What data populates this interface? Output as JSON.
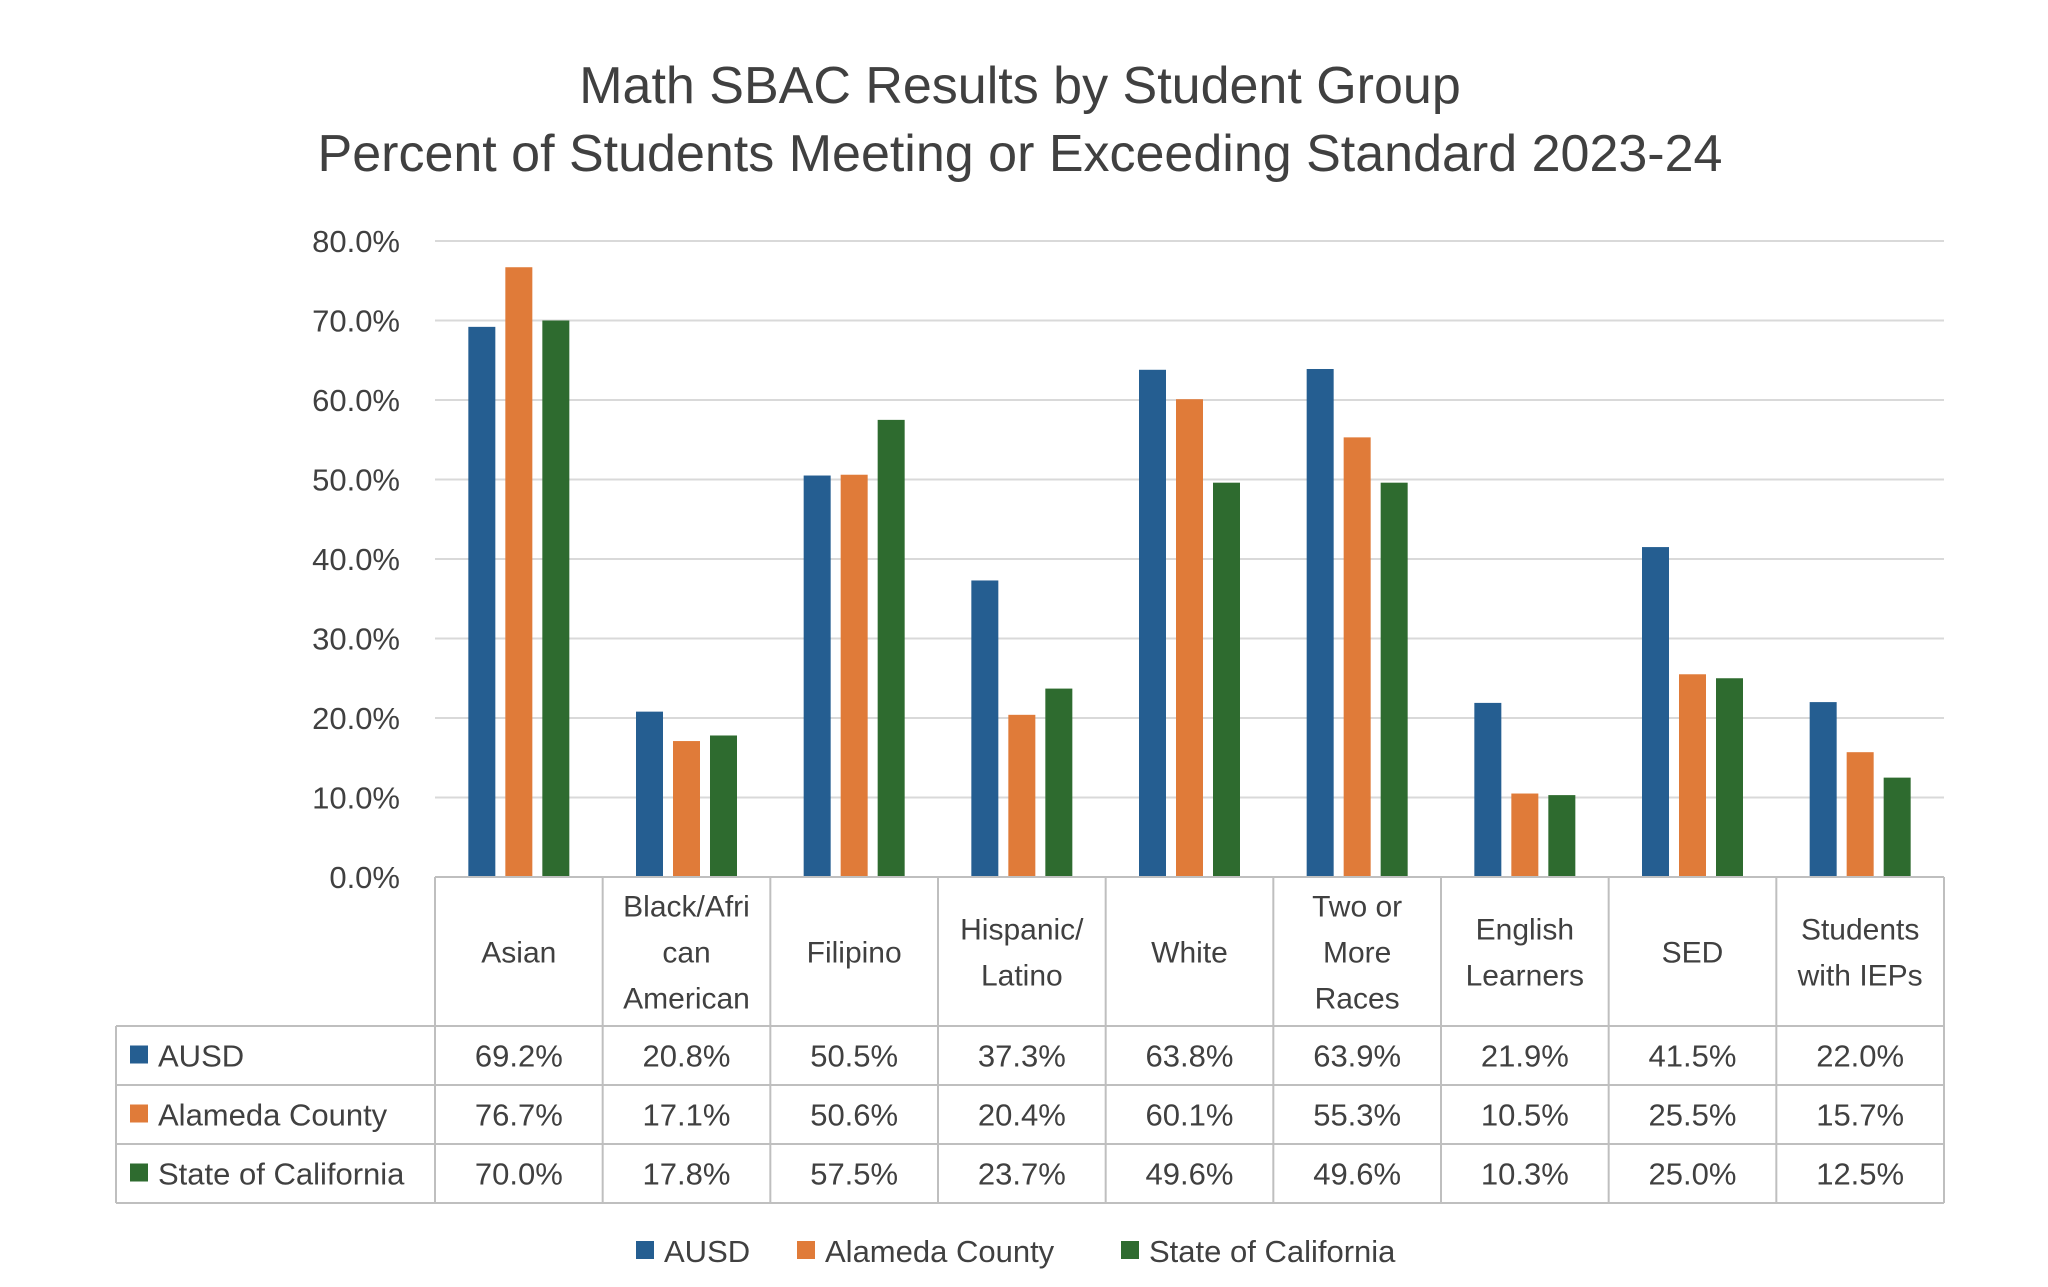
{
  "chart_data": {
    "type": "bar",
    "title": [
      "Math SBAC Results by Student Group",
      "Percent of Students Meeting or Exceeding Standard 2023-24"
    ],
    "categories": [
      [
        "Asian"
      ],
      [
        "Black/Afri",
        "can",
        "American"
      ],
      [
        "Filipino"
      ],
      [
        "Hispanic/",
        "Latino"
      ],
      [
        "White"
      ],
      [
        "Two or",
        "More",
        "Races"
      ],
      [
        "English",
        "Learners"
      ],
      [
        "SED"
      ],
      [
        "Students",
        "with IEPs"
      ]
    ],
    "series": [
      {
        "name": "AUSD",
        "color": "#255E91",
        "values": [
          69.2,
          20.8,
          50.5,
          37.3,
          63.8,
          63.9,
          21.9,
          41.5,
          22.0
        ],
        "labels": [
          "69.2%",
          "20.8%",
          "50.5%",
          "37.3%",
          "63.8%",
          "63.9%",
          "21.9%",
          "41.5%",
          "22.0%"
        ]
      },
      {
        "name": "Alameda County",
        "color": "#E07B39",
        "values": [
          76.7,
          17.1,
          50.6,
          20.4,
          60.1,
          55.3,
          10.5,
          25.5,
          15.7
        ],
        "labels": [
          "76.7%",
          "17.1%",
          "50.6%",
          "20.4%",
          "60.1%",
          "55.3%",
          "10.5%",
          "25.5%",
          "15.7%"
        ]
      },
      {
        "name": "State of California",
        "color": "#2E6B2F",
        "values": [
          70.0,
          17.8,
          57.5,
          23.7,
          49.6,
          49.6,
          10.3,
          25.0,
          12.5
        ],
        "labels": [
          "70.0%",
          "17.8%",
          "57.5%",
          "23.7%",
          "49.6%",
          "49.6%",
          "10.3%",
          "25.0%",
          "12.5%"
        ]
      }
    ],
    "ylim": [
      0,
      80
    ],
    "yticks": [
      0,
      10,
      20,
      30,
      40,
      50,
      60,
      70,
      80
    ],
    "ytick_labels": [
      "0.0%",
      "10.0%",
      "20.0%",
      "30.0%",
      "40.0%",
      "50.0%",
      "60.0%",
      "70.0%",
      "80.0%"
    ],
    "grid": true,
    "legend": "bottom",
    "data_table": true
  }
}
